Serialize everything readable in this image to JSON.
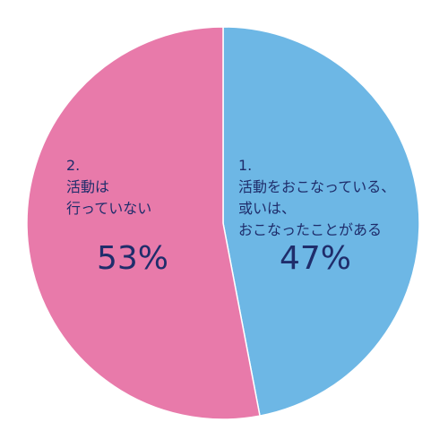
{
  "chart_data": {
    "type": "pie",
    "title": "",
    "slices": [
      {
        "label_lines": [
          "1.",
          "活動をおこなっている、",
          "或いは、",
          "おこなったことがある"
        ],
        "value": 47,
        "value_label": "47%",
        "color": "#6db7e5"
      },
      {
        "label_lines": [
          "2.",
          "活動は",
          "行っていない"
        ],
        "value": 53,
        "value_label": "53%",
        "color": "#e87aaa"
      }
    ]
  }
}
